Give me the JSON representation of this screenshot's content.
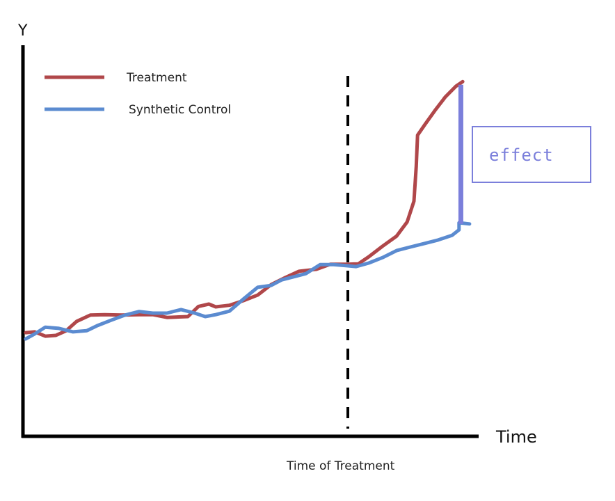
{
  "chart_data": {
    "type": "line",
    "title": "",
    "xlabel": "Time",
    "ylabel": "Y",
    "xlim": [
      0,
      100
    ],
    "ylim": [
      0,
      100
    ],
    "grid": false,
    "legend_position": "top-left",
    "series": [
      {
        "name": "Treatment",
        "color": "#b0474a",
        "x": [
          0.6,
          2.6,
          4.9,
          7.2,
          9.5,
          11.8,
          14.8,
          17.9,
          21.7,
          25.5,
          28.5,
          31.6,
          36.2,
          38.5,
          40.8,
          42.3,
          45.3,
          48.4,
          51.5,
          54.5,
          57.6,
          60.6,
          64.4,
          67.5,
          71.3,
          73.6,
          75.9,
          78.9,
          82.0,
          84.3,
          85.8,
          86.3,
          86.6,
          88.2,
          90.4,
          92.7,
          95.0,
          96.5
        ],
        "y": [
          26.5,
          26.7,
          25.6,
          25.8,
          27.0,
          29.4,
          31.0,
          31.1,
          31.0,
          31.1,
          31.1,
          30.4,
          30.6,
          33.2,
          33.8,
          33.1,
          33.5,
          34.7,
          36.1,
          38.8,
          40.6,
          42.2,
          42.7,
          44.0,
          44.0,
          44.1,
          45.9,
          48.6,
          51.2,
          54.8,
          60.1,
          69.0,
          77.0,
          79.7,
          83.3,
          86.8,
          89.5,
          90.7
        ]
      },
      {
        "name": "Synthetic Control",
        "color": "#5b8bd0",
        "x": [
          0.6,
          2.6,
          4.9,
          7.9,
          11.0,
          14.0,
          16.3,
          19.4,
          22.4,
          25.5,
          28.5,
          31.6,
          34.7,
          37.7,
          40.0,
          42.3,
          45.3,
          48.4,
          51.5,
          54.5,
          56.8,
          59.1,
          62.1,
          65.2,
          68.2,
          71.3,
          73.1,
          75.9,
          78.9,
          82.0,
          85.0,
          88.1,
          91.1,
          94.2,
          95.7,
          95.7,
          98.0
        ],
        "y": [
          24.9,
          26.2,
          27.9,
          27.6,
          26.7,
          27.0,
          28.3,
          29.7,
          31.0,
          31.9,
          31.5,
          31.5,
          32.4,
          31.5,
          30.6,
          31.1,
          32.0,
          35.1,
          38.1,
          38.6,
          40.0,
          40.7,
          41.6,
          43.9,
          43.9,
          43.6,
          43.4,
          44.3,
          45.7,
          47.5,
          48.4,
          49.3,
          50.2,
          51.4,
          52.8,
          54.6,
          54.3
        ]
      }
    ],
    "annotations": {
      "treatment_time_x": 71.3,
      "treatment_time_label": "Time of Treatment",
      "effect_label": "effect",
      "effect_x": 96.1,
      "effect_y_low": 54.3,
      "effect_y_high": 89.9,
      "effect_color": "#7b7fdb"
    }
  }
}
